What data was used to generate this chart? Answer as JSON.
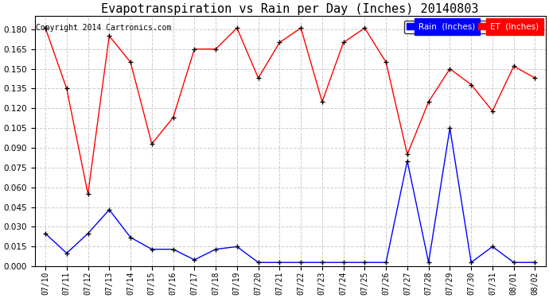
{
  "title": "Evapotranspiration vs Rain per Day (Inches) 20140803",
  "copyright": "Copyright 2014 Cartronics.com",
  "dates": [
    "07/10",
    "07/11",
    "07/12",
    "07/13",
    "07/14",
    "07/15",
    "07/16",
    "07/17",
    "07/18",
    "07/19",
    "07/20",
    "07/21",
    "07/22",
    "07/23",
    "07/24",
    "07/25",
    "07/26",
    "07/27",
    "07/28",
    "07/29",
    "07/30",
    "07/31",
    "08/01",
    "08/02"
  ],
  "et_values": [
    0.181,
    0.135,
    0.055,
    0.175,
    0.155,
    0.093,
    0.113,
    0.165,
    0.165,
    0.181,
    0.143,
    0.17,
    0.181,
    0.125,
    0.17,
    0.181,
    0.155,
    0.085,
    0.125,
    0.15,
    0.138,
    0.118,
    0.152,
    0.143
  ],
  "rain_values": [
    0.025,
    0.01,
    0.025,
    0.043,
    0.022,
    0.013,
    0.013,
    0.005,
    0.013,
    0.015,
    0.003,
    0.003,
    0.003,
    0.003,
    0.003,
    0.003,
    0.003,
    0.08,
    0.003,
    0.105,
    0.003,
    0.015,
    0.003,
    0.003
  ],
  "et_color": "red",
  "rain_color": "blue",
  "marker_color": "black",
  "bg_color": "white",
  "grid_color": "#cccccc",
  "ylim": [
    0,
    0.19
  ],
  "yticks": [
    0.0,
    0.015,
    0.03,
    0.045,
    0.06,
    0.075,
    0.09,
    0.105,
    0.12,
    0.135,
    0.15,
    0.165,
    0.18
  ],
  "legend_rain_bg": "blue",
  "legend_et_bg": "red",
  "legend_text_color": "white",
  "title_fontsize": 11,
  "copyright_fontsize": 7
}
